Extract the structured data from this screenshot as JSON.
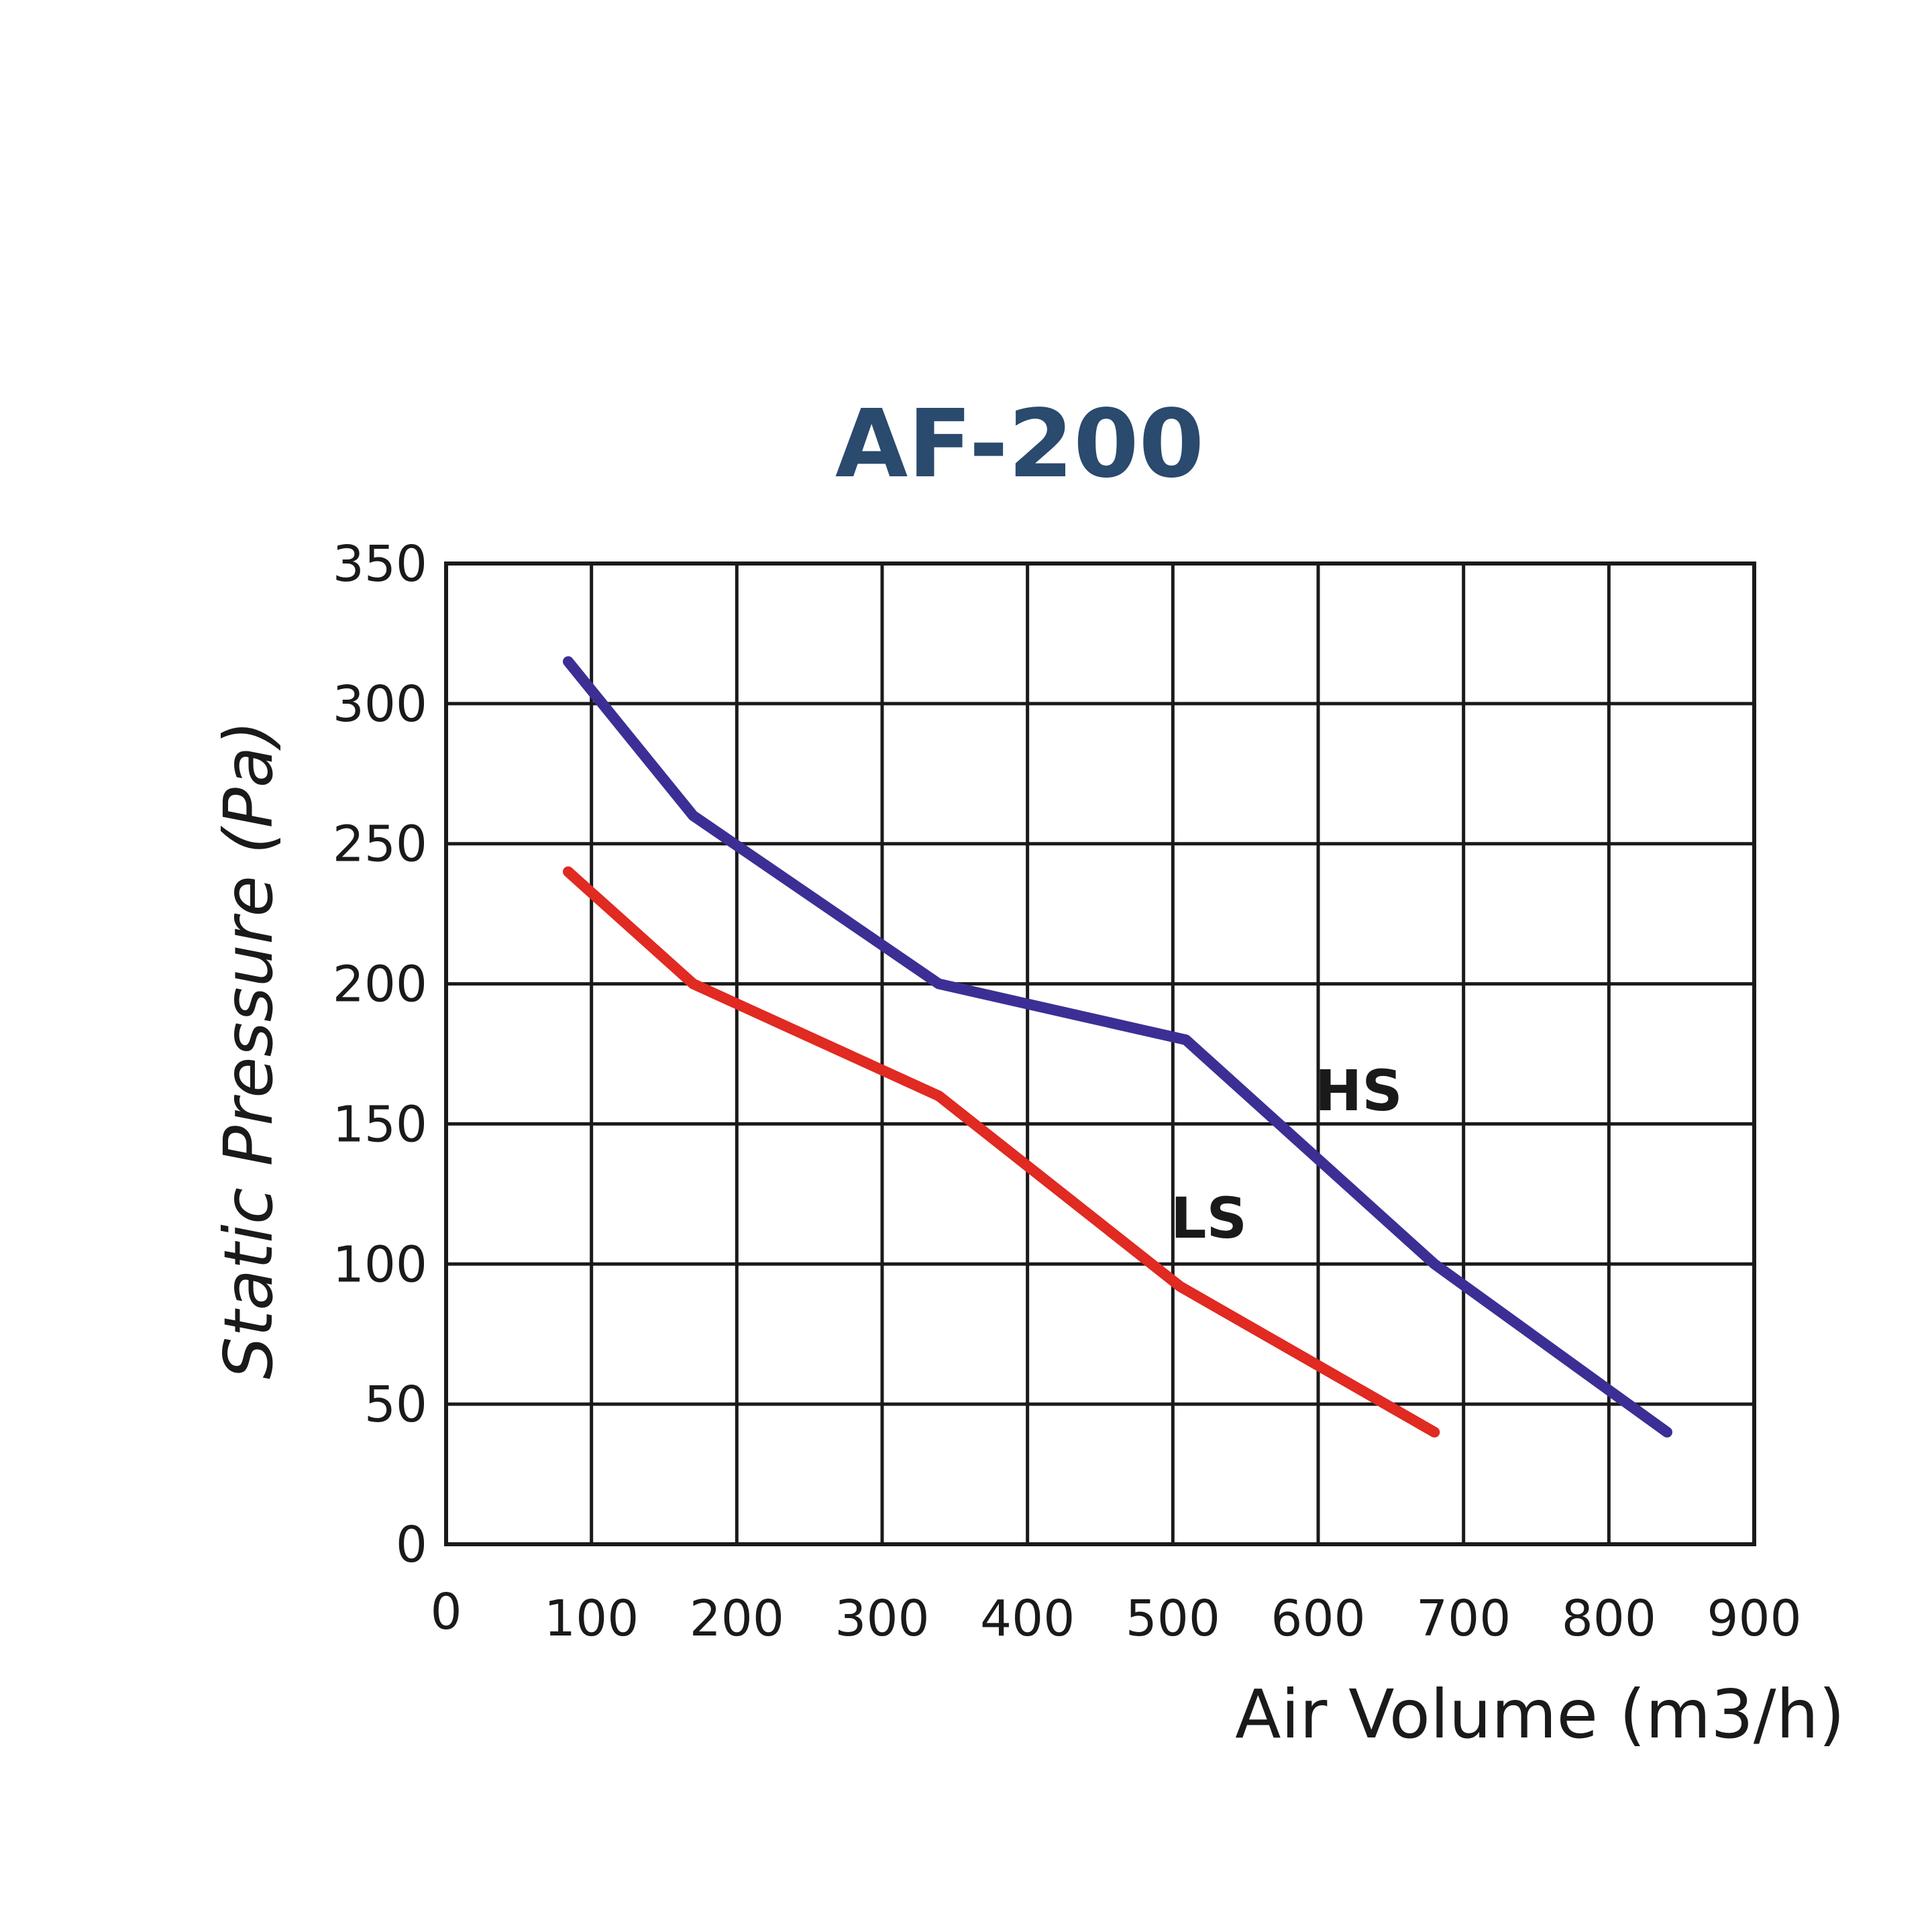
{
  "chart_data": {
    "type": "line",
    "title": "AF-200",
    "xlabel": "Air Volume (m3/h)",
    "ylabel": "Static Pressure (Pa)",
    "xlim": [
      0,
      900
    ],
    "ylim": [
      0,
      350
    ],
    "x_ticks": [
      "0",
      "100",
      "200",
      "300",
      "400",
      "500",
      "600",
      "700",
      "800",
      "900"
    ],
    "y_ticks": [
      "0",
      "50",
      "100",
      "150",
      "200",
      "250",
      "300",
      "350"
    ],
    "grid": true,
    "series": [
      {
        "name": "HS",
        "color": "#3b2f95",
        "points": [
          [
            84,
            315
          ],
          [
            170,
            260
          ],
          [
            339,
            200
          ],
          [
            509,
            180
          ],
          [
            680,
            100
          ],
          [
            840,
            40
          ]
        ]
      },
      {
        "name": "LS",
        "color": "#e02a22",
        "points": [
          [
            84,
            240
          ],
          [
            170,
            200
          ],
          [
            339,
            160
          ],
          [
            505,
            92
          ],
          [
            680,
            40
          ]
        ]
      }
    ]
  }
}
